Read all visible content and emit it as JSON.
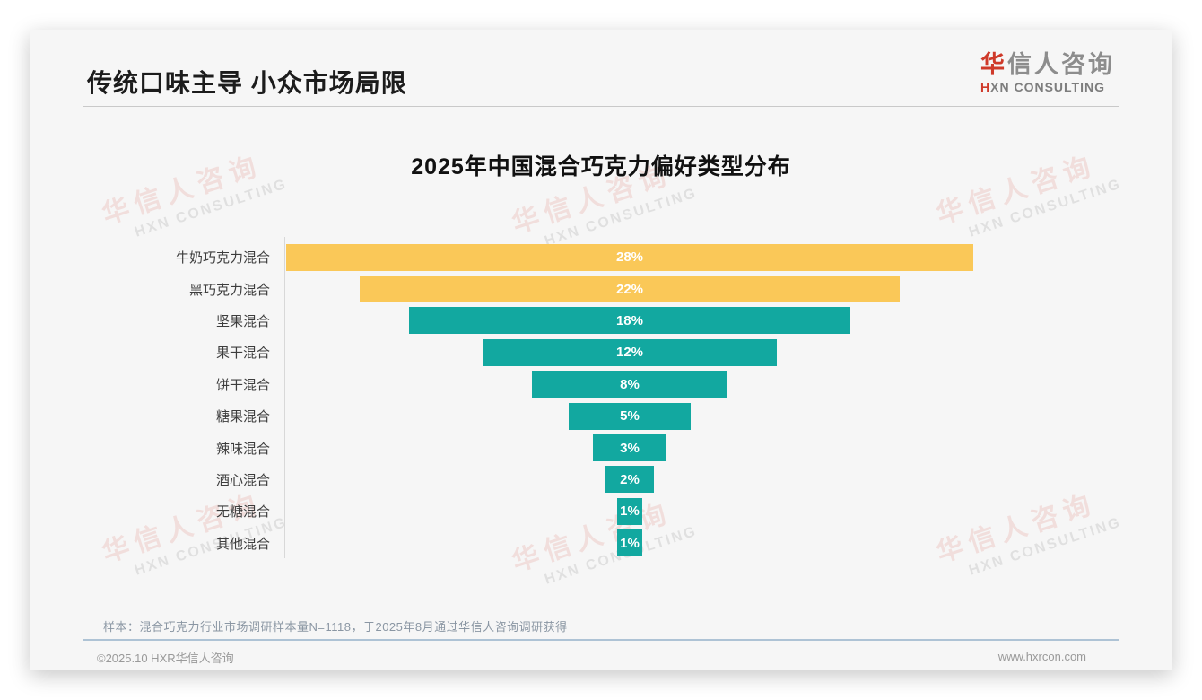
{
  "header": {
    "title": "传统口味主导 小众市场局限",
    "logo": {
      "cn_accent": "华",
      "cn_rest": "信人咨询",
      "en_accent": "H",
      "en_rest": "XN CONSULTING"
    }
  },
  "watermark": {
    "line1": "华信人咨询",
    "line2": "HXN CONSULTING"
  },
  "chart_data": {
    "type": "bar",
    "layout": "centered-funnel",
    "title": "2025年中国混合巧克力偏好类型分布",
    "categories": [
      "牛奶巧克力混合",
      "黑巧克力混合",
      "坚果混合",
      "果干混合",
      "饼干混合",
      "糖果混合",
      "辣味混合",
      "酒心混合",
      "无糖混合",
      "其他混合"
    ],
    "values": [
      28,
      22,
      18,
      12,
      8,
      5,
      3,
      2,
      1,
      1
    ],
    "value_labels": [
      "28%",
      "22%",
      "18%",
      "12%",
      "8%",
      "5%",
      "3%",
      "2%",
      "1%",
      "1%"
    ],
    "bar_colors": [
      "#FAC858",
      "#FAC858",
      "#12A8A0",
      "#12A8A0",
      "#12A8A0",
      "#12A8A0",
      "#12A8A0",
      "#12A8A0",
      "#12A8A0",
      "#12A8A0"
    ],
    "xlim": [
      0,
      28
    ],
    "grid": false,
    "legend": false,
    "value_label_color": "#FFFFFF"
  },
  "note": "样本：混合巧克力行业市场调研样本量N=1118，于2025年8月通过华信人咨询调研获得",
  "footer": {
    "copyright": "©2025.10 HXR华信人咨询",
    "website": "www.hxrcon.com"
  },
  "colors": {
    "accent_red": "#CF3A2A",
    "bar_yellow": "#FAC858",
    "bar_teal": "#12A8A0",
    "card_bg": "#F6F6F6"
  }
}
